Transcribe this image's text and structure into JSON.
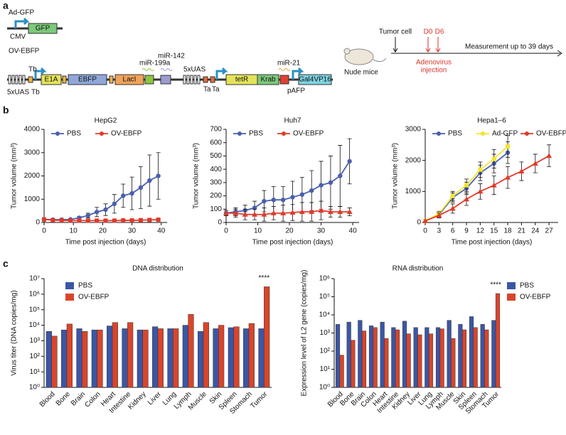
{
  "panels": [
    "a",
    "b",
    "c"
  ],
  "diagram": {
    "ad_gfp": "Ad-GFP",
    "cmv": "CMV",
    "gfp": "GFP",
    "ov_ebfp": "OV-EBFP",
    "uas_1": "5xUAS",
    "tb_1": "Tb",
    "tb_2": "Tb",
    "e1a": "E1A",
    "ebfp": "EBFP",
    "laci": "LacI",
    "mir199a": "miR-199a",
    "mir142": "miR-142",
    "uas_2": "5xUAS",
    "ta_1": "Ta",
    "ta_2": "Ta",
    "tetr": "tetR",
    "krab": "Krab",
    "mir21": "miR-21",
    "pafp": "pAFP",
    "gal4vp16": "Gal4VP16",
    "nude_mice": "Nude mice",
    "tumor_cell": "Tumor cell",
    "d0": "D0",
    "d6": "D6",
    "adenovirus": "Adenovirus",
    "injection": "injection",
    "measurement": "Measurement up to 39 days"
  },
  "chart_data": [
    {
      "type": "line",
      "title": "HepG2",
      "x_label": "Time post injection (days)",
      "y_label": "Tumor volume (mm³)",
      "x": [
        0,
        3,
        6,
        9,
        12,
        15,
        18,
        21,
        24,
        27,
        30,
        33,
        36,
        39
      ],
      "series": [
        {
          "name": "PBS",
          "color": "#4a5fae",
          "marker": "circle",
          "values": [
            130,
            120,
            120,
            130,
            200,
            300,
            450,
            550,
            800,
            1150,
            1250,
            1500,
            1800,
            2000
          ],
          "errors": [
            0,
            0,
            0,
            20,
            50,
            100,
            200,
            250,
            400,
            500,
            700,
            900,
            1100,
            1000
          ]
        },
        {
          "name": "OV-EBFP",
          "color": "#e03a2a",
          "marker": "square",
          "values": [
            130,
            100,
            90,
            80,
            80,
            80,
            80,
            80,
            80,
            90,
            90,
            100,
            110,
            120
          ],
          "errors": [
            0,
            0,
            0,
            0,
            10,
            10,
            10,
            10,
            10,
            10,
            10,
            20,
            20,
            20
          ]
        }
      ],
      "xlim": [
        0,
        42
      ],
      "xticks": [
        0,
        10,
        20,
        30,
        40
      ],
      "ylim": [
        0,
        4000
      ],
      "yticks": [
        0,
        1000,
        2000,
        3000,
        4000
      ]
    },
    {
      "type": "line",
      "title": "Huh7",
      "x_label": "Time post injection (days)",
      "y_label": "Tumor volume (mm³)",
      "x": [
        0,
        3,
        6,
        9,
        12,
        15,
        18,
        21,
        24,
        27,
        30,
        33,
        36,
        39
      ],
      "series": [
        {
          "name": "PBS",
          "color": "#4a5fae",
          "marker": "circle",
          "values": [
            70,
            80,
            90,
            110,
            160,
            170,
            170,
            190,
            210,
            240,
            280,
            300,
            350,
            460
          ],
          "errors": [
            20,
            30,
            40,
            50,
            80,
            100,
            100,
            120,
            130,
            150,
            180,
            200,
            230,
            170
          ]
        },
        {
          "name": "OV-EBFP",
          "color": "#e03a2a",
          "marker": "triangle",
          "values": [
            70,
            70,
            60,
            60,
            60,
            70,
            70,
            75,
            80,
            80,
            90,
            80,
            80,
            80
          ],
          "errors": [
            20,
            30,
            40,
            40,
            50,
            50,
            60,
            60,
            70,
            70,
            70,
            40,
            40,
            30
          ]
        }
      ],
      "xlim": [
        0,
        42
      ],
      "xticks": [
        0,
        10,
        20,
        30,
        40
      ],
      "ylim": [
        0,
        700
      ],
      "yticks": [
        0,
        100,
        200,
        300,
        400,
        500,
        600,
        700
      ]
    },
    {
      "type": "line",
      "title": "Hepa1–6",
      "x_label": "Time post injection (days)",
      "y_label": "Tumor volume (mm³)",
      "x": [
        0,
        3,
        6,
        9,
        12,
        15,
        18,
        21,
        24,
        27
      ],
      "series": [
        {
          "name": "PBS",
          "color": "#4a5fae",
          "marker": "circle",
          "values": [
            50,
            250,
            800,
            1100,
            1600,
            1900,
            2250,
            null,
            null,
            null
          ],
          "errors": [
            0,
            80,
            150,
            200,
            250,
            300,
            350,
            null,
            null,
            null
          ]
        },
        {
          "name": "Ad-GFP",
          "color": "#f2e52a",
          "marker": "square",
          "values": [
            50,
            280,
            850,
            1200,
            1700,
            2050,
            2450,
            null,
            null,
            null
          ],
          "errors": [
            0,
            80,
            150,
            200,
            250,
            300,
            350,
            null,
            null,
            null
          ]
        },
        {
          "name": "OV-EBFP",
          "color": "#e03a2a",
          "marker": "triangle",
          "values": [
            50,
            230,
            450,
            750,
            1000,
            1200,
            1450,
            1650,
            1900,
            2150
          ],
          "errors": [
            0,
            80,
            150,
            200,
            250,
            300,
            350,
            300,
            300,
            350
          ]
        }
      ],
      "xlim": [
        0,
        29
      ],
      "xticks": [
        0,
        3,
        6,
        9,
        12,
        15,
        18,
        21,
        24,
        27
      ],
      "ylim": [
        0,
        3000
      ],
      "yticks": [
        0,
        1000,
        2000,
        3000
      ]
    },
    {
      "type": "bar",
      "title": "DNA distribution",
      "y_label": "Virus titer (DNA copies/mg)",
      "log_y": true,
      "legend": "upper left",
      "annotation": "****",
      "categories": [
        "Blood",
        "Bone",
        "Brain",
        "Colon",
        "Heart",
        "Intestine",
        "Kidney",
        "Liver",
        "Lung",
        "Lymph",
        "Muscle",
        "Skin",
        "Spleen",
        "Stomach",
        "Tumor"
      ],
      "series": [
        {
          "name": "PBS",
          "color": "#3b56a5",
          "values": [
            4000,
            5000,
            6000,
            5000,
            9000,
            6000,
            5000,
            8000,
            6000,
            10000,
            4000,
            6000,
            7000,
            6000,
            6000
          ]
        },
        {
          "name": "OV-EBFP",
          "color": "#d9452b",
          "values": [
            2000,
            12000,
            4000,
            5000,
            15000,
            15000,
            5000,
            6000,
            6000,
            50000,
            15000,
            10000,
            8000,
            13000,
            3000000
          ]
        }
      ],
      "ylim": [
        1,
        10000000
      ],
      "yticks": [
        {
          "value": 1,
          "label": "10⁰"
        },
        {
          "value": 10,
          "label": "10¹"
        },
        {
          "value": 100,
          "label": "10²"
        },
        {
          "value": 1000,
          "label": "10³"
        },
        {
          "value": 10000,
          "label": "10⁴"
        },
        {
          "value": 100000,
          "label": "10⁵"
        },
        {
          "value": 1000000,
          "label": "10⁶"
        },
        {
          "value": 10000000,
          "label": "10⁷"
        }
      ]
    },
    {
      "type": "bar",
      "title": "RNA distribution",
      "y_label": "Expression level of L2 gene (copies/mg)",
      "log_y": true,
      "legend": "right",
      "annotation": "****",
      "categories": [
        "Blood",
        "Bone",
        "Brain",
        "Colon",
        "Heart",
        "Intestine",
        "Kidney",
        "Liver",
        "Lung",
        "Lymph",
        "Muscle",
        "Skin",
        "Spleen",
        "Stomach",
        "Tumor"
      ],
      "series": [
        {
          "name": "PBS",
          "color": "#3b56a5",
          "values": [
            3000,
            4000,
            5000,
            2500,
            4000,
            2000,
            4500,
            2000,
            2000,
            2000,
            5000,
            3000,
            8000,
            3000,
            5000
          ]
        },
        {
          "name": "OV-EBFP",
          "color": "#d9452b",
          "values": [
            60,
            400,
            1300,
            2000,
            500,
            1500,
            900,
            800,
            900,
            1700,
            500,
            1500,
            2000,
            1500,
            150000
          ]
        }
      ],
      "ylim": [
        1,
        1000000
      ],
      "yticks": [
        {
          "value": 1,
          "label": "10⁰"
        },
        {
          "value": 10,
          "label": "10¹"
        },
        {
          "value": 100,
          "label": "10²"
        },
        {
          "value": 1000,
          "label": "10³"
        },
        {
          "value": 10000,
          "label": "10⁴"
        },
        {
          "value": 100000,
          "label": "10⁵"
        },
        {
          "value": 1000000,
          "label": "10⁶"
        }
      ]
    }
  ]
}
